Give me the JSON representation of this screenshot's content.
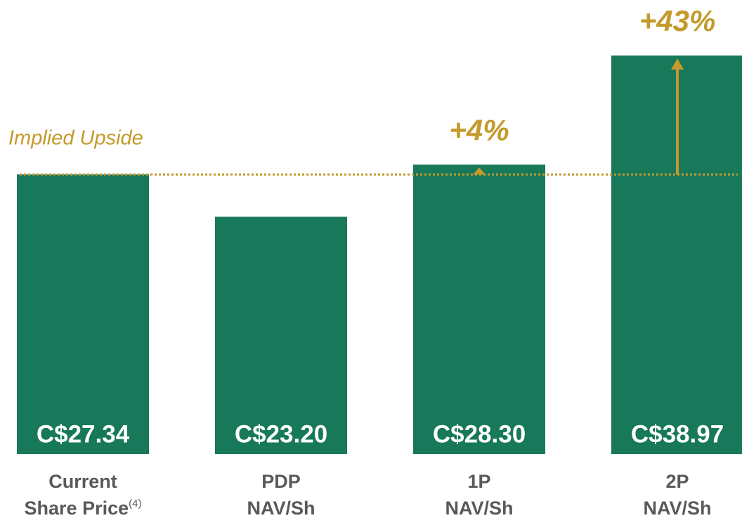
{
  "chart_data": {
    "type": "bar",
    "categories": [
      [
        "Current",
        "Share Price"
      ],
      [
        "PDP",
        "NAV/Sh"
      ],
      [
        "1P",
        "NAV/Sh"
      ],
      [
        "2P",
        "NAV/Sh"
      ]
    ],
    "category_footnotes": [
      "(4)",
      null,
      null,
      null
    ],
    "values": [
      27.34,
      23.2,
      28.3,
      38.97
    ],
    "value_labels": [
      "C$27.34",
      "C$23.20",
      "C$28.30",
      "C$38.97"
    ],
    "upside_labels": [
      null,
      null,
      "+4%",
      "+43%"
    ],
    "reference_label": "Implied Upside",
    "color": "#17785a",
    "accent_color": "#c49a2c",
    "ylim": [
      0,
      40
    ]
  }
}
